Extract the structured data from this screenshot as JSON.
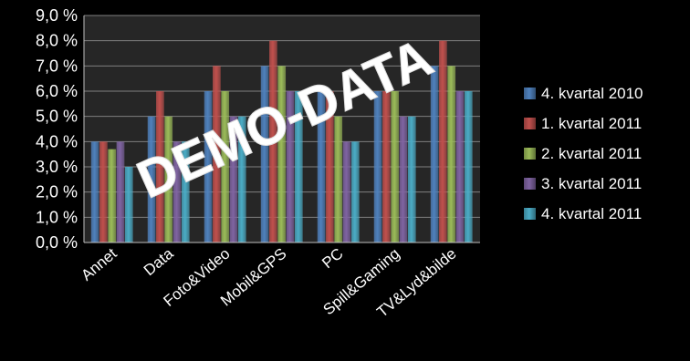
{
  "chart_data": {
    "type": "bar",
    "categories": [
      "Annet",
      "Data",
      "Foto&Video",
      "Mobil&GPS",
      "PC",
      "Spill&Gaming",
      "TV&Lyd&bilde"
    ],
    "series": [
      {
        "name": "4. kvartal 2010",
        "color": "#4f81bd",
        "values": [
          4.0,
          5.0,
          6.0,
          7.0,
          6.0,
          6.0,
          7.0
        ]
      },
      {
        "name": "1. kvartal 2011",
        "color": "#c0504d",
        "values": [
          4.0,
          6.0,
          7.0,
          8.0,
          6.0,
          6.0,
          8.0
        ]
      },
      {
        "name": "2. kvartal 2011",
        "color": "#9bbb59",
        "values": [
          3.7,
          5.0,
          6.0,
          7.0,
          5.0,
          6.0,
          7.0
        ]
      },
      {
        "name": "3. kvartal 2011",
        "color": "#8064a2",
        "values": [
          4.0,
          4.0,
          5.0,
          6.0,
          4.0,
          5.0,
          6.0
        ]
      },
      {
        "name": "4. kvartal 2011",
        "color": "#4bacc6",
        "values": [
          3.0,
          4.0,
          5.0,
          6.0,
          4.0,
          5.0,
          6.0
        ]
      }
    ],
    "yticks": [
      "0,0 %",
      "1,0 %",
      "2,0 %",
      "3,0 %",
      "4,0 %",
      "5,0 %",
      "6,0 %",
      "7,0 %",
      "8,0 %",
      "9,0 %"
    ],
    "ylim": [
      0,
      9
    ],
    "grid": true,
    "legend_position": "right",
    "watermark": "DEMO-DATA",
    "plot_background": "#262626"
  }
}
